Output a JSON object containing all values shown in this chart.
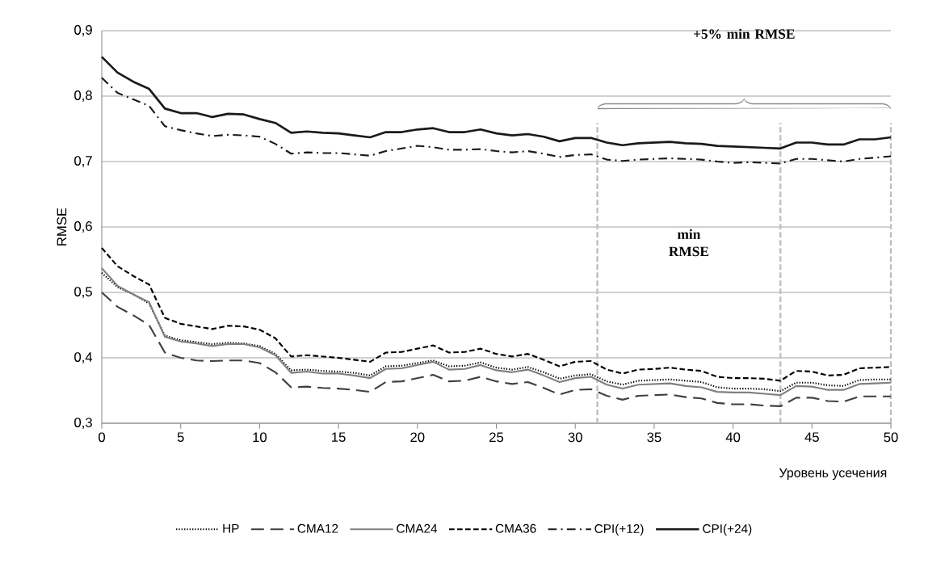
{
  "chart_data": {
    "type": "line",
    "xlabel": "Уровень усечения",
    "ylabel": "RMSE",
    "x": [
      0,
      1,
      2,
      3,
      4,
      5,
      6,
      7,
      8,
      9,
      10,
      11,
      12,
      13,
      14,
      15,
      16,
      17,
      18,
      19,
      20,
      21,
      22,
      23,
      24,
      25,
      26,
      27,
      28,
      29,
      30,
      31,
      32,
      33,
      34,
      35,
      36,
      37,
      38,
      39,
      40,
      41,
      42,
      43,
      44,
      45,
      46,
      47,
      48,
      49,
      50
    ],
    "xlim": [
      0,
      50
    ],
    "xticks": [
      0,
      5,
      10,
      15,
      20,
      25,
      30,
      35,
      40,
      45,
      50
    ],
    "ylim": [
      0.3,
      0.9
    ],
    "yticks": [
      {
        "value": 0.3,
        "label": "0,3"
      },
      {
        "value": 0.4,
        "label": "0,4"
      },
      {
        "value": 0.5,
        "label": "0,5"
      },
      {
        "value": 0.6,
        "label": "0,6"
      },
      {
        "value": 0.7,
        "label": "0,7"
      },
      {
        "value": 0.8,
        "label": "0,8"
      },
      {
        "value": 0.9,
        "label": "0,9"
      }
    ],
    "grid": "y",
    "legend": "bottom",
    "marker": "none",
    "series": [
      {
        "name": "HP",
        "color": "#000000",
        "line_style": "dotted",
        "values": [
          0.53,
          0.508,
          0.497,
          0.483,
          0.434,
          0.427,
          0.424,
          0.421,
          0.423,
          0.422,
          0.418,
          0.406,
          0.381,
          0.382,
          0.38,
          0.379,
          0.377,
          0.373,
          0.387,
          0.388,
          0.392,
          0.396,
          0.387,
          0.388,
          0.393,
          0.385,
          0.382,
          0.386,
          0.378,
          0.368,
          0.373,
          0.375,
          0.364,
          0.359,
          0.365,
          0.366,
          0.367,
          0.365,
          0.363,
          0.355,
          0.353,
          0.353,
          0.352,
          0.349,
          0.362,
          0.362,
          0.358,
          0.357,
          0.366,
          0.367,
          0.367
        ]
      },
      {
        "name": "CMA12",
        "color": "#404040",
        "line_style": "longdashed",
        "values": [
          0.5,
          0.478,
          0.465,
          0.45,
          0.408,
          0.4,
          0.396,
          0.395,
          0.396,
          0.396,
          0.392,
          0.378,
          0.355,
          0.356,
          0.354,
          0.353,
          0.351,
          0.348,
          0.363,
          0.364,
          0.369,
          0.374,
          0.364,
          0.365,
          0.371,
          0.364,
          0.36,
          0.363,
          0.354,
          0.344,
          0.351,
          0.352,
          0.342,
          0.336,
          0.342,
          0.343,
          0.344,
          0.34,
          0.338,
          0.331,
          0.329,
          0.329,
          0.327,
          0.326,
          0.339,
          0.339,
          0.334,
          0.333,
          0.341,
          0.341,
          0.341
        ]
      },
      {
        "name": "CMA24",
        "color": "#808080",
        "line_style": "solid",
        "values": [
          0.537,
          0.51,
          0.497,
          0.485,
          0.432,
          0.425,
          0.422,
          0.418,
          0.421,
          0.421,
          0.416,
          0.404,
          0.377,
          0.379,
          0.376,
          0.376,
          0.373,
          0.369,
          0.383,
          0.384,
          0.389,
          0.394,
          0.382,
          0.383,
          0.389,
          0.381,
          0.378,
          0.382,
          0.373,
          0.363,
          0.369,
          0.371,
          0.359,
          0.353,
          0.359,
          0.36,
          0.361,
          0.357,
          0.355,
          0.348,
          0.347,
          0.347,
          0.345,
          0.343,
          0.357,
          0.356,
          0.351,
          0.351,
          0.36,
          0.361,
          0.362
        ]
      },
      {
        "name": "CMA36",
        "color": "#000000",
        "line_style": "dashed",
        "values": [
          0.568,
          0.54,
          0.525,
          0.512,
          0.461,
          0.452,
          0.448,
          0.444,
          0.449,
          0.448,
          0.443,
          0.43,
          0.402,
          0.404,
          0.402,
          0.4,
          0.397,
          0.394,
          0.408,
          0.409,
          0.414,
          0.419,
          0.408,
          0.409,
          0.414,
          0.406,
          0.402,
          0.406,
          0.397,
          0.387,
          0.394,
          0.395,
          0.382,
          0.376,
          0.382,
          0.383,
          0.385,
          0.382,
          0.38,
          0.371,
          0.369,
          0.369,
          0.368,
          0.365,
          0.38,
          0.379,
          0.373,
          0.374,
          0.384,
          0.385,
          0.386
        ]
      },
      {
        "name": "CPI(+12)",
        "color": "#1a1a1a",
        "line_style": "dashdot",
        "values": [
          0.828,
          0.805,
          0.795,
          0.785,
          0.754,
          0.748,
          0.743,
          0.739,
          0.741,
          0.74,
          0.738,
          0.727,
          0.712,
          0.714,
          0.713,
          0.713,
          0.711,
          0.709,
          0.716,
          0.72,
          0.724,
          0.722,
          0.718,
          0.718,
          0.719,
          0.716,
          0.714,
          0.716,
          0.712,
          0.707,
          0.71,
          0.711,
          0.703,
          0.701,
          0.703,
          0.704,
          0.705,
          0.704,
          0.703,
          0.7,
          0.698,
          0.699,
          0.698,
          0.697,
          0.704,
          0.704,
          0.702,
          0.7,
          0.704,
          0.706,
          0.708
        ]
      },
      {
        "name": "CPI(+24)",
        "color": "#1a1a1a",
        "line_style": "solid",
        "values": [
          0.86,
          0.836,
          0.822,
          0.811,
          0.781,
          0.774,
          0.774,
          0.768,
          0.773,
          0.772,
          0.765,
          0.759,
          0.744,
          0.746,
          0.744,
          0.743,
          0.74,
          0.737,
          0.745,
          0.745,
          0.749,
          0.751,
          0.745,
          0.745,
          0.749,
          0.743,
          0.74,
          0.742,
          0.738,
          0.731,
          0.736,
          0.736,
          0.729,
          0.725,
          0.728,
          0.729,
          0.73,
          0.728,
          0.727,
          0.724,
          0.723,
          0.722,
          0.721,
          0.72,
          0.729,
          0.729,
          0.726,
          0.726,
          0.734,
          0.734,
          0.737
        ]
      }
    ],
    "ref_lines": [
      {
        "axis": "x",
        "value": 31.4,
        "color": "#bfbfbf",
        "line_style": "dashed"
      },
      {
        "axis": "x",
        "value": 43,
        "color": "#bfbfbf",
        "line_style": "dashed"
      },
      {
        "axis": "x",
        "value": 50,
        "color": "#bfbfbf",
        "line_style": "dashed"
      }
    ],
    "annotations": [
      "+5% min RMSE",
      "min RMSE"
    ]
  }
}
